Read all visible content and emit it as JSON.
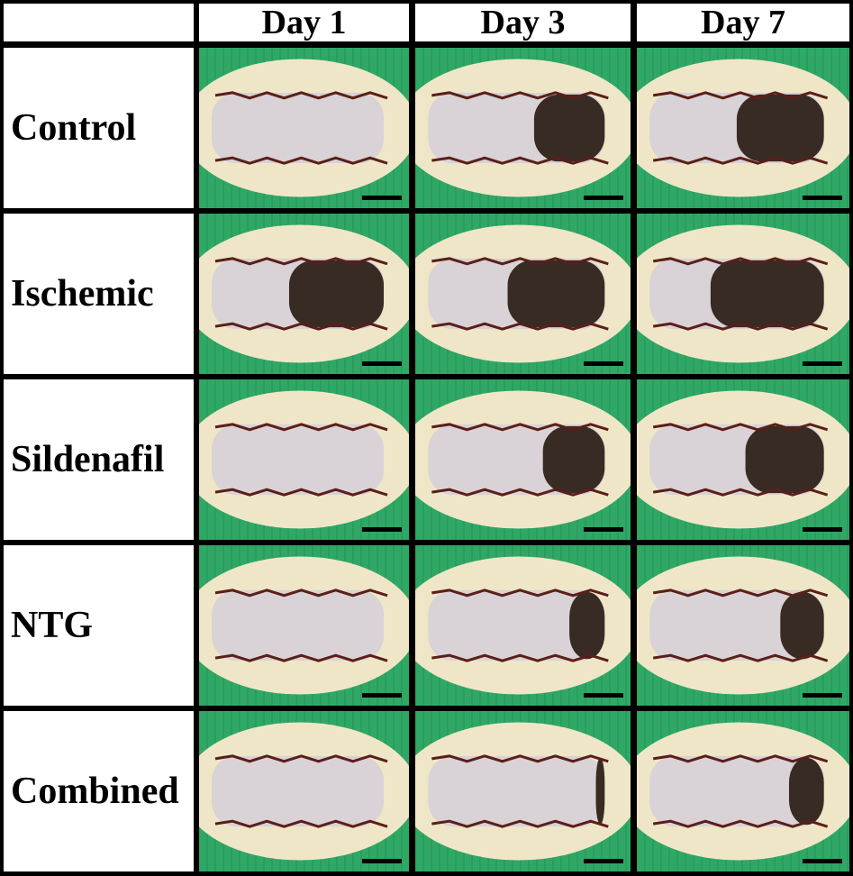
{
  "headers": [
    "Day 1",
    "Day 3",
    "Day 7"
  ],
  "rows": [
    {
      "label": "Control",
      "necrosis": [
        0.0,
        0.4,
        0.5
      ]
    },
    {
      "label": "Ischemic",
      "necrosis": [
        0.55,
        0.55,
        0.65
      ]
    },
    {
      "label": "Sildenafil",
      "necrosis": [
        0.0,
        0.35,
        0.45
      ]
    },
    {
      "label": "NTG",
      "necrosis": [
        0.0,
        0.2,
        0.25
      ]
    },
    {
      "label": "Combined",
      "necrosis": [
        0.0,
        0.05,
        0.2
      ]
    }
  ],
  "colors": {
    "background": "#2fa866",
    "fur": "#efe6c8",
    "skin": "#d9d2d6",
    "sutures": "#5a1f18",
    "necrosis": "#2a1c14",
    "scale_bar": "#000000"
  }
}
